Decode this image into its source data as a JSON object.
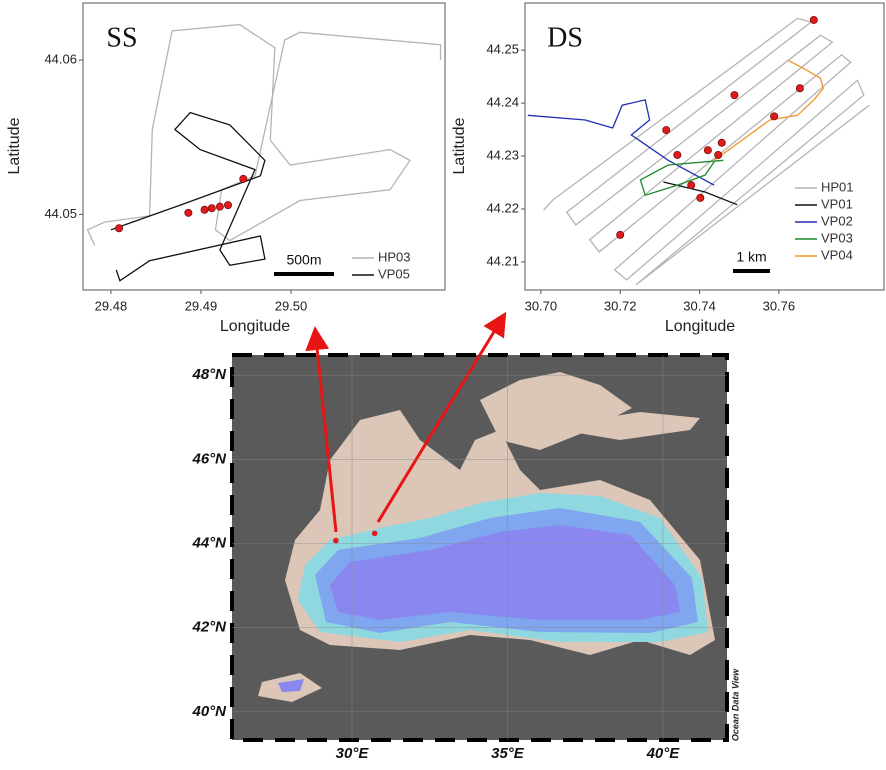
{
  "chart_data": [
    {
      "type": "line",
      "panel_label": "SS",
      "scale_bar": "500m",
      "x_label": "Longitude",
      "y_label": "Latitude",
      "xlim": [
        29.4769,
        29.5171
      ],
      "ylim": [
        44.0451,
        44.0637
      ],
      "xticks": [
        29.48,
        29.49,
        {
          "value": 29.5,
          "label": "29.50"
        }
      ],
      "yticks": [
        44.05,
        44.06
      ],
      "legend": "lower right",
      "series": [
        {
          "name": "HP03",
          "color": "#b4b4b4",
          "x": [
            29.4782,
            29.4774,
            29.4793,
            29.4843,
            29.4846,
            29.4868,
            29.4943,
            29.4982,
            29.4977,
            29.4999,
            29.511,
            29.5132,
            29.511,
            29.501,
            29.4932,
            29.4916,
            29.4923,
            29.496,
            29.4993,
            29.501,
            29.5166,
            29.5166
          ],
          "y": [
            44.048,
            44.049,
            44.0495,
            44.0499,
            44.0555,
            44.0619,
            44.0623,
            44.0608,
            44.0548,
            44.0532,
            44.0542,
            44.0535,
            44.0516,
            44.0509,
            44.0483,
            44.049,
            44.0516,
            44.0525,
            44.0613,
            44.0618,
            44.061,
            44.06
          ]
        },
        {
          "name": "VP05",
          "color": "#111111",
          "x": [
            29.48,
            29.4877,
            29.4966,
            29.4971,
            29.4932,
            29.4888,
            29.4871,
            29.4899,
            29.496,
            29.4921,
            29.4932,
            29.4971,
            29.4966,
            29.4843,
            29.481,
            29.4806
          ],
          "y": [
            44.049,
            44.0506,
            44.0525,
            44.0535,
            44.0558,
            44.0566,
            44.0555,
            44.0542,
            44.0529,
            44.0477,
            44.0467,
            44.0471,
            44.0486,
            44.047,
            44.0457,
            44.0464
          ]
        }
      ],
      "points": {
        "color": "#e01b1b",
        "x": [
          29.4809,
          29.4886,
          29.4904,
          29.4912,
          29.4921,
          29.493,
          29.4947
        ],
        "y": [
          44.0491,
          44.0501,
          44.0503,
          44.0504,
          44.0505,
          44.0506,
          44.0523
        ]
      }
    },
    {
      "type": "line",
      "panel_label": "DS",
      "scale_bar": "1 km",
      "x_label": "Longitude",
      "y_label": "Latitude",
      "xlim": [
        30.696,
        30.7865
      ],
      "ylim": [
        44.2047,
        44.2589
      ],
      "xticks": [
        {
          "value": 30.7,
          "label": "30.70"
        },
        30.72,
        30.74,
        30.76
      ],
      "yticks": [
        44.21,
        44.22,
        44.23,
        44.24,
        44.25
      ],
      "legend": "lower right",
      "series": [
        {
          "name": "HP01",
          "color": "#b4b4b4",
          "x": [
            30.7007,
            30.703,
            30.7647,
            30.7681,
            30.7065,
            30.7088,
            30.7705,
            30.7735,
            30.7123,
            30.7147,
            30.7758,
            30.7781,
            30.7186,
            30.7216,
            30.7798,
            30.7814,
            30.724,
            30.7828
          ],
          "y": [
            44.2198,
            44.2217,
            44.256,
            44.2553,
            44.2194,
            44.217,
            44.2528,
            44.2515,
            44.2142,
            44.2119,
            44.2491,
            44.2477,
            44.2085,
            44.2066,
            44.2443,
            44.2415,
            44.2057,
            44.2396
          ]
        },
        {
          "name": "VP01",
          "color": "#111111",
          "x": [
            30.7309,
            30.7414,
            30.7495
          ],
          "y": [
            44.2251,
            44.2232,
            44.2208
          ]
        },
        {
          "name": "VP02",
          "color": "#1f2fb0",
          "x": [
            30.6967,
            30.7112,
            30.7181,
            30.7205,
            30.7263,
            30.7274,
            30.7228,
            30.7321,
            30.7437
          ],
          "y": [
            44.2377,
            44.2368,
            44.2353,
            44.2396,
            44.2406,
            44.2368,
            44.234,
            44.2292,
            44.2245
          ]
        },
        {
          "name": "VP03",
          "color": "#1a8a2a",
          "x": [
            30.746,
            30.7321,
            30.7251,
            30.7263,
            30.7344,
            30.7414,
            30.7437
          ],
          "y": [
            44.2292,
            44.2283,
            44.2255,
            44.2226,
            44.2245,
            44.2264,
            44.2289
          ]
        },
        {
          "name": "VP04",
          "color": "#f0962a",
          "x": [
            30.7437,
            30.7577,
            30.7647,
            30.7688,
            30.7712,
            30.7705,
            30.767,
            30.7623
          ],
          "y": [
            44.2292,
            44.2368,
            44.2377,
            44.2406,
            44.2428,
            44.2447,
            44.2462,
            44.2481
          ]
        }
      ],
      "points": {
        "color": "#e01b1b",
        "x": [
          30.72,
          30.7316,
          30.7344,
          30.7379,
          30.7402,
          30.7421,
          30.7447,
          30.7456,
          30.7488,
          30.7588,
          30.7653,
          30.7688
        ],
        "y": [
          44.2151,
          44.2349,
          44.2302,
          44.2245,
          44.2221,
          44.2311,
          44.2302,
          44.2325,
          44.2415,
          44.2375,
          44.2428,
          44.2557
        ]
      }
    },
    {
      "type": "map",
      "annotation": "Ocean Data View",
      "xlim": [
        26.14,
        42.06
      ],
      "ylim": [
        39.33,
        48.48
      ],
      "xticks": [
        {
          "value": 30,
          "label": "30°E"
        },
        {
          "value": 35,
          "label": "35°E"
        },
        {
          "value": 40,
          "label": "40°E"
        }
      ],
      "yticks": [
        {
          "value": 40,
          "label": "40°N"
        },
        {
          "value": 42,
          "label": "42°N"
        },
        {
          "value": 44,
          "label": "44°N"
        },
        {
          "value": 46,
          "label": "46°N"
        },
        {
          "value": 48,
          "label": "48°N"
        }
      ],
      "grid": true,
      "stations": {
        "color": "#e01b1b",
        "x": [
          29.48,
          30.73
        ],
        "y": [
          44.07,
          44.24
        ]
      }
    }
  ]
}
